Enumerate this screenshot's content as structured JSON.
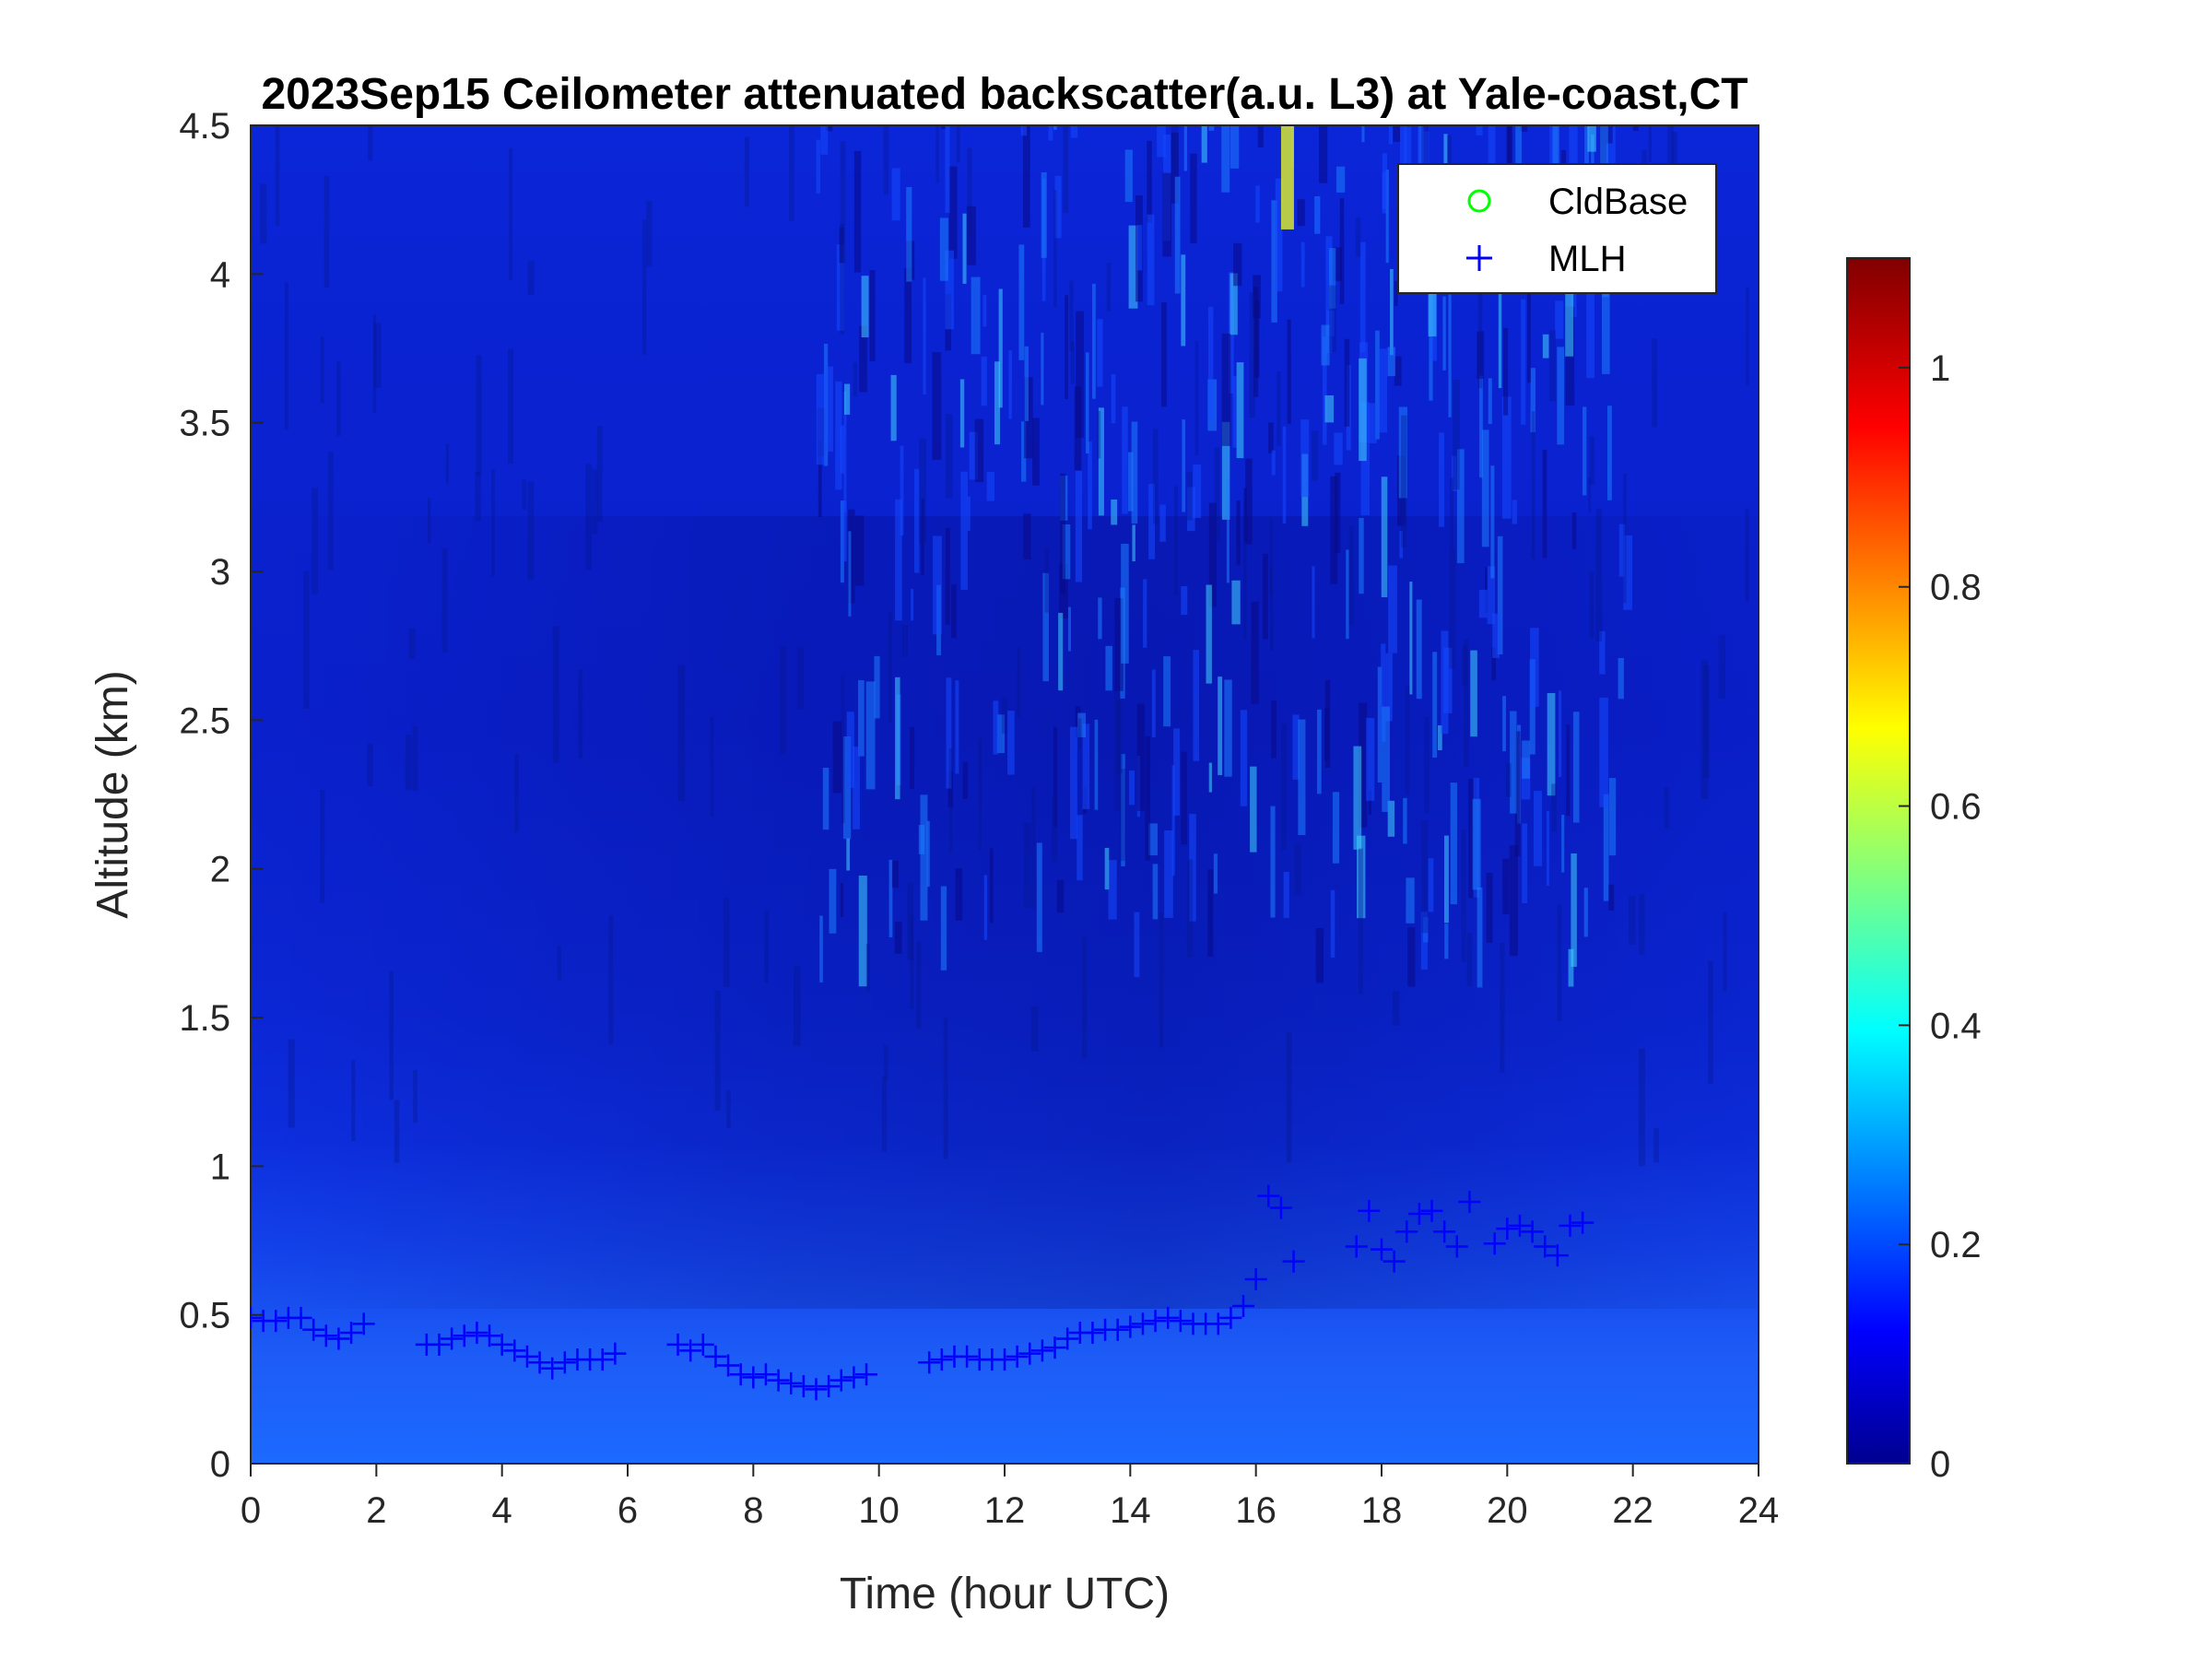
{
  "chart_data": {
    "type": "heatmap",
    "title": "2023Sep15 Ceilometer attenuated backscatter(a.u. L3) at Yale-coast,CT",
    "xlabel": "Time (hour UTC)",
    "ylabel": "Altitude (km)",
    "xlim": [
      0,
      24
    ],
    "ylim": [
      0,
      4.5
    ],
    "x_ticks": [
      0,
      2,
      4,
      6,
      8,
      10,
      12,
      14,
      16,
      18,
      20,
      22,
      24
    ],
    "x_tick_labels": [
      "0",
      "2",
      "4",
      "6",
      "8",
      "10",
      "12",
      "14",
      "16",
      "18",
      "20",
      "22",
      "24"
    ],
    "y_ticks": [
      0,
      0.5,
      1,
      1.5,
      2,
      2.5,
      3,
      3.5,
      4,
      4.5
    ],
    "y_tick_labels": [
      "0",
      "0.5",
      "1",
      "1.5",
      "2",
      "2.5",
      "3",
      "3.5",
      "4",
      "4.5"
    ],
    "colorbar": {
      "colormap": "jet",
      "range": [
        0,
        1.1
      ],
      "ticks": [
        0,
        0.2,
        0.4,
        0.6,
        0.8,
        1
      ],
      "tick_labels": [
        "0",
        "0.2",
        "0.4",
        "0.6",
        "0.8",
        "1"
      ]
    },
    "legend": {
      "placement": "top-right",
      "entries": [
        {
          "label": "CldBase",
          "marker": "circle",
          "color": "#00ff00"
        },
        {
          "label": "MLH",
          "marker": "plus",
          "color": "#0000ff"
        }
      ]
    },
    "series": [
      {
        "name": "MLH",
        "marker": "plus",
        "color": "#0000ff",
        "x": [
          0.0,
          0.2,
          0.4,
          0.6,
          0.8,
          1.0,
          1.2,
          1.4,
          1.6,
          1.8,
          2.8,
          3.0,
          3.2,
          3.4,
          3.6,
          3.8,
          4.0,
          4.2,
          4.4,
          4.6,
          4.8,
          5.0,
          5.2,
          5.4,
          5.6,
          5.8,
          6.8,
          7.0,
          7.2,
          7.4,
          7.6,
          7.8,
          8.0,
          8.2,
          8.4,
          8.6,
          8.8,
          9.0,
          9.2,
          9.4,
          9.6,
          9.8,
          10.8,
          11.0,
          11.2,
          11.4,
          11.6,
          11.8,
          12.0,
          12.2,
          12.4,
          12.6,
          12.8,
          13.0,
          13.2,
          13.4,
          13.6,
          13.8,
          14.0,
          14.2,
          14.4,
          14.6,
          14.8,
          15.0,
          15.2,
          15.4,
          15.6,
          15.8,
          16.0,
          16.2,
          16.4,
          16.6,
          17.6,
          17.8,
          18.0,
          18.2,
          18.4,
          18.6,
          18.8,
          19.0,
          19.2,
          19.4,
          19.8,
          20.0,
          20.2,
          20.4,
          20.6,
          20.8,
          21.0,
          21.2
        ],
        "y": [
          0.49,
          0.48,
          0.48,
          0.49,
          0.49,
          0.45,
          0.43,
          0.42,
          0.44,
          0.47,
          0.4,
          0.4,
          0.42,
          0.43,
          0.44,
          0.43,
          0.4,
          0.38,
          0.36,
          0.34,
          0.32,
          0.34,
          0.35,
          0.35,
          0.35,
          0.37,
          0.4,
          0.38,
          0.4,
          0.36,
          0.33,
          0.3,
          0.29,
          0.3,
          0.28,
          0.27,
          0.26,
          0.25,
          0.26,
          0.28,
          0.29,
          0.3,
          0.34,
          0.35,
          0.36,
          0.36,
          0.35,
          0.35,
          0.35,
          0.36,
          0.37,
          0.38,
          0.39,
          0.42,
          0.44,
          0.44,
          0.45,
          0.45,
          0.46,
          0.47,
          0.48,
          0.49,
          0.48,
          0.47,
          0.47,
          0.47,
          0.49,
          0.53,
          0.62,
          0.9,
          0.86,
          0.68,
          0.73,
          0.85,
          0.72,
          0.68,
          0.78,
          0.84,
          0.85,
          0.78,
          0.73,
          0.88,
          0.74,
          0.79,
          0.8,
          0.78,
          0.73,
          0.7,
          0.8,
          0.81
        ]
      },
      {
        "name": "CldBase",
        "marker": "circle",
        "color": "#00ff00",
        "x": [],
        "y": []
      }
    ]
  }
}
